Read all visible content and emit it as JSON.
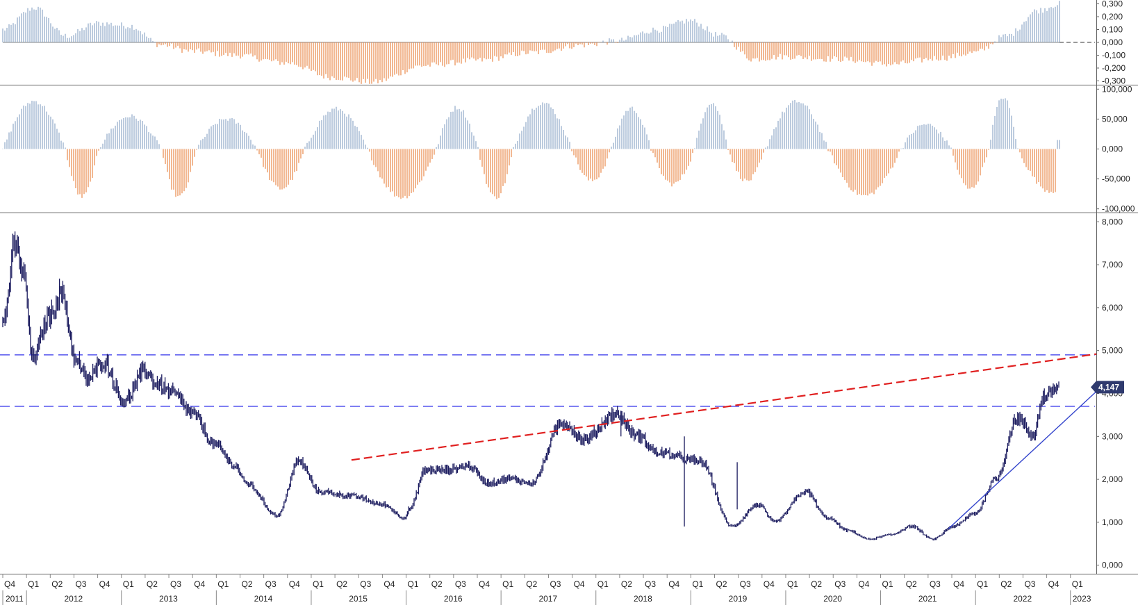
{
  "colors": {
    "positive": "#8fa8c8",
    "negative": "#e8884a",
    "price": "#1a1a5e",
    "support": "#5555ee",
    "trend_red": "#e02020",
    "trend_blue": "#3344cc",
    "badge_bg": "#2f3a6e",
    "grid": "#888888"
  },
  "chart_data": [
    {
      "type": "bar",
      "panel": "oscillator-top",
      "ylim": [
        -0.33,
        0.33
      ],
      "ticks": [
        "0,300",
        "0,200",
        "0,100",
        "0,000",
        "-0,100",
        "-0,200",
        "-0,300"
      ],
      "tick_values": [
        0.3,
        0.2,
        0.1,
        0.0,
        -0.1,
        -0.2,
        -0.3
      ],
      "baseline": 0.0,
      "anchors_t": [
        0.0,
        0.03,
        0.06,
        0.09,
        0.12,
        0.15,
        0.18,
        0.22,
        0.27,
        0.31,
        0.35,
        0.4,
        0.45,
        0.5,
        0.55,
        0.58,
        0.62,
        0.65,
        0.68,
        0.71,
        0.74,
        0.79,
        0.84,
        0.89,
        0.92,
        0.95,
        0.98,
        1.0
      ],
      "anchors_v": [
        0.1,
        0.27,
        0.05,
        0.15,
        0.13,
        -0.02,
        -0.07,
        -0.1,
        -0.16,
        -0.27,
        -0.31,
        -0.18,
        -0.14,
        -0.08,
        -0.02,
        0.01,
        0.1,
        0.17,
        0.05,
        -0.13,
        -0.11,
        -0.13,
        -0.17,
        -0.12,
        -0.08,
        0.05,
        0.25,
        0.3
      ]
    },
    {
      "type": "bar",
      "panel": "oscillator-middle",
      "ylim": [
        -105000,
        105000
      ],
      "ticks": [
        "100,000",
        "50,000",
        "0,000",
        "-50,000",
        "-100,000"
      ],
      "tick_values": [
        100000,
        50000,
        0,
        -50000,
        -100000
      ],
      "baseline": 0
    },
    {
      "type": "line",
      "panel": "price",
      "ylim": [
        -200,
        8200
      ],
      "ticks": [
        "8,000",
        "7,000",
        "6,000",
        "5,000",
        "4,000",
        "3,000",
        "2,000",
        "1,000",
        "0,000"
      ],
      "tick_values": [
        8000,
        7000,
        6000,
        5000,
        4000,
        3000,
        2000,
        1000,
        0
      ],
      "last_value_label": "4,147",
      "last_value": 4147,
      "anchors_t": [
        0.0,
        0.012,
        0.02,
        0.028,
        0.045,
        0.055,
        0.07,
        0.08,
        0.095,
        0.115,
        0.135,
        0.145,
        0.16,
        0.18,
        0.2,
        0.22,
        0.23,
        0.26,
        0.28,
        0.3,
        0.33,
        0.36,
        0.38,
        0.385,
        0.4,
        0.42,
        0.44,
        0.46,
        0.48,
        0.5,
        0.53,
        0.55,
        0.58,
        0.6,
        0.62,
        0.66,
        0.69,
        0.715,
        0.73,
        0.76,
        0.78,
        0.8,
        0.82,
        0.84,
        0.86,
        0.88,
        0.9,
        0.92,
        0.94,
        0.96,
        0.975,
        0.985,
        1.0
      ],
      "anchors_v": [
        5600,
        7400,
        6700,
        4800,
        5800,
        6300,
        4700,
        4300,
        4700,
        3800,
        4500,
        4200,
        4000,
        3500,
        2800,
        2300,
        1900,
        1150,
        2400,
        1700,
        1600,
        1400,
        1100,
        1300,
        2200,
        2200,
        2300,
        1900,
        2000,
        1900,
        3300,
        2900,
        3500,
        3000,
        2600,
        2400,
        900,
        1400,
        1000,
        1700,
        1100,
        800,
        600,
        700,
        900,
        600,
        900,
        1200,
        2000,
        3400,
        3000,
        3900,
        4147
      ],
      "horizontal_levels": [
        4900,
        3700
      ],
      "red_trendline": {
        "x0_t": 0.33,
        "y0": 2450,
        "x1_t": 1.035,
        "y1": 4920
      },
      "blue_trendline": {
        "x0_t": 0.895,
        "y0": 850,
        "x1_t": 1.035,
        "y1": 4050
      },
      "quarter_labels": [
        "Q4",
        "Q1",
        "Q2",
        "Q3",
        "Q4",
        "Q1",
        "Q2",
        "Q3",
        "Q4",
        "Q1",
        "Q2",
        "Q3",
        "Q4",
        "Q1",
        "Q2",
        "Q3",
        "Q4",
        "Q1",
        "Q2",
        "Q3",
        "Q4",
        "Q1",
        "Q2",
        "Q3",
        "Q4",
        "Q1",
        "Q2",
        "Q3",
        "Q4",
        "Q1",
        "Q2",
        "Q3",
        "Q4",
        "Q1",
        "Q2",
        "Q3",
        "Q4",
        "Q1",
        "Q2",
        "Q3",
        "Q4",
        "Q1",
        "Q2",
        "Q3",
        "Q4",
        "Q1"
      ],
      "year_labels": [
        "2011",
        "2012",
        "2013",
        "2014",
        "2015",
        "2016",
        "2017",
        "2018",
        "2019",
        "2020",
        "2021",
        "2022",
        "2023"
      ]
    }
  ]
}
